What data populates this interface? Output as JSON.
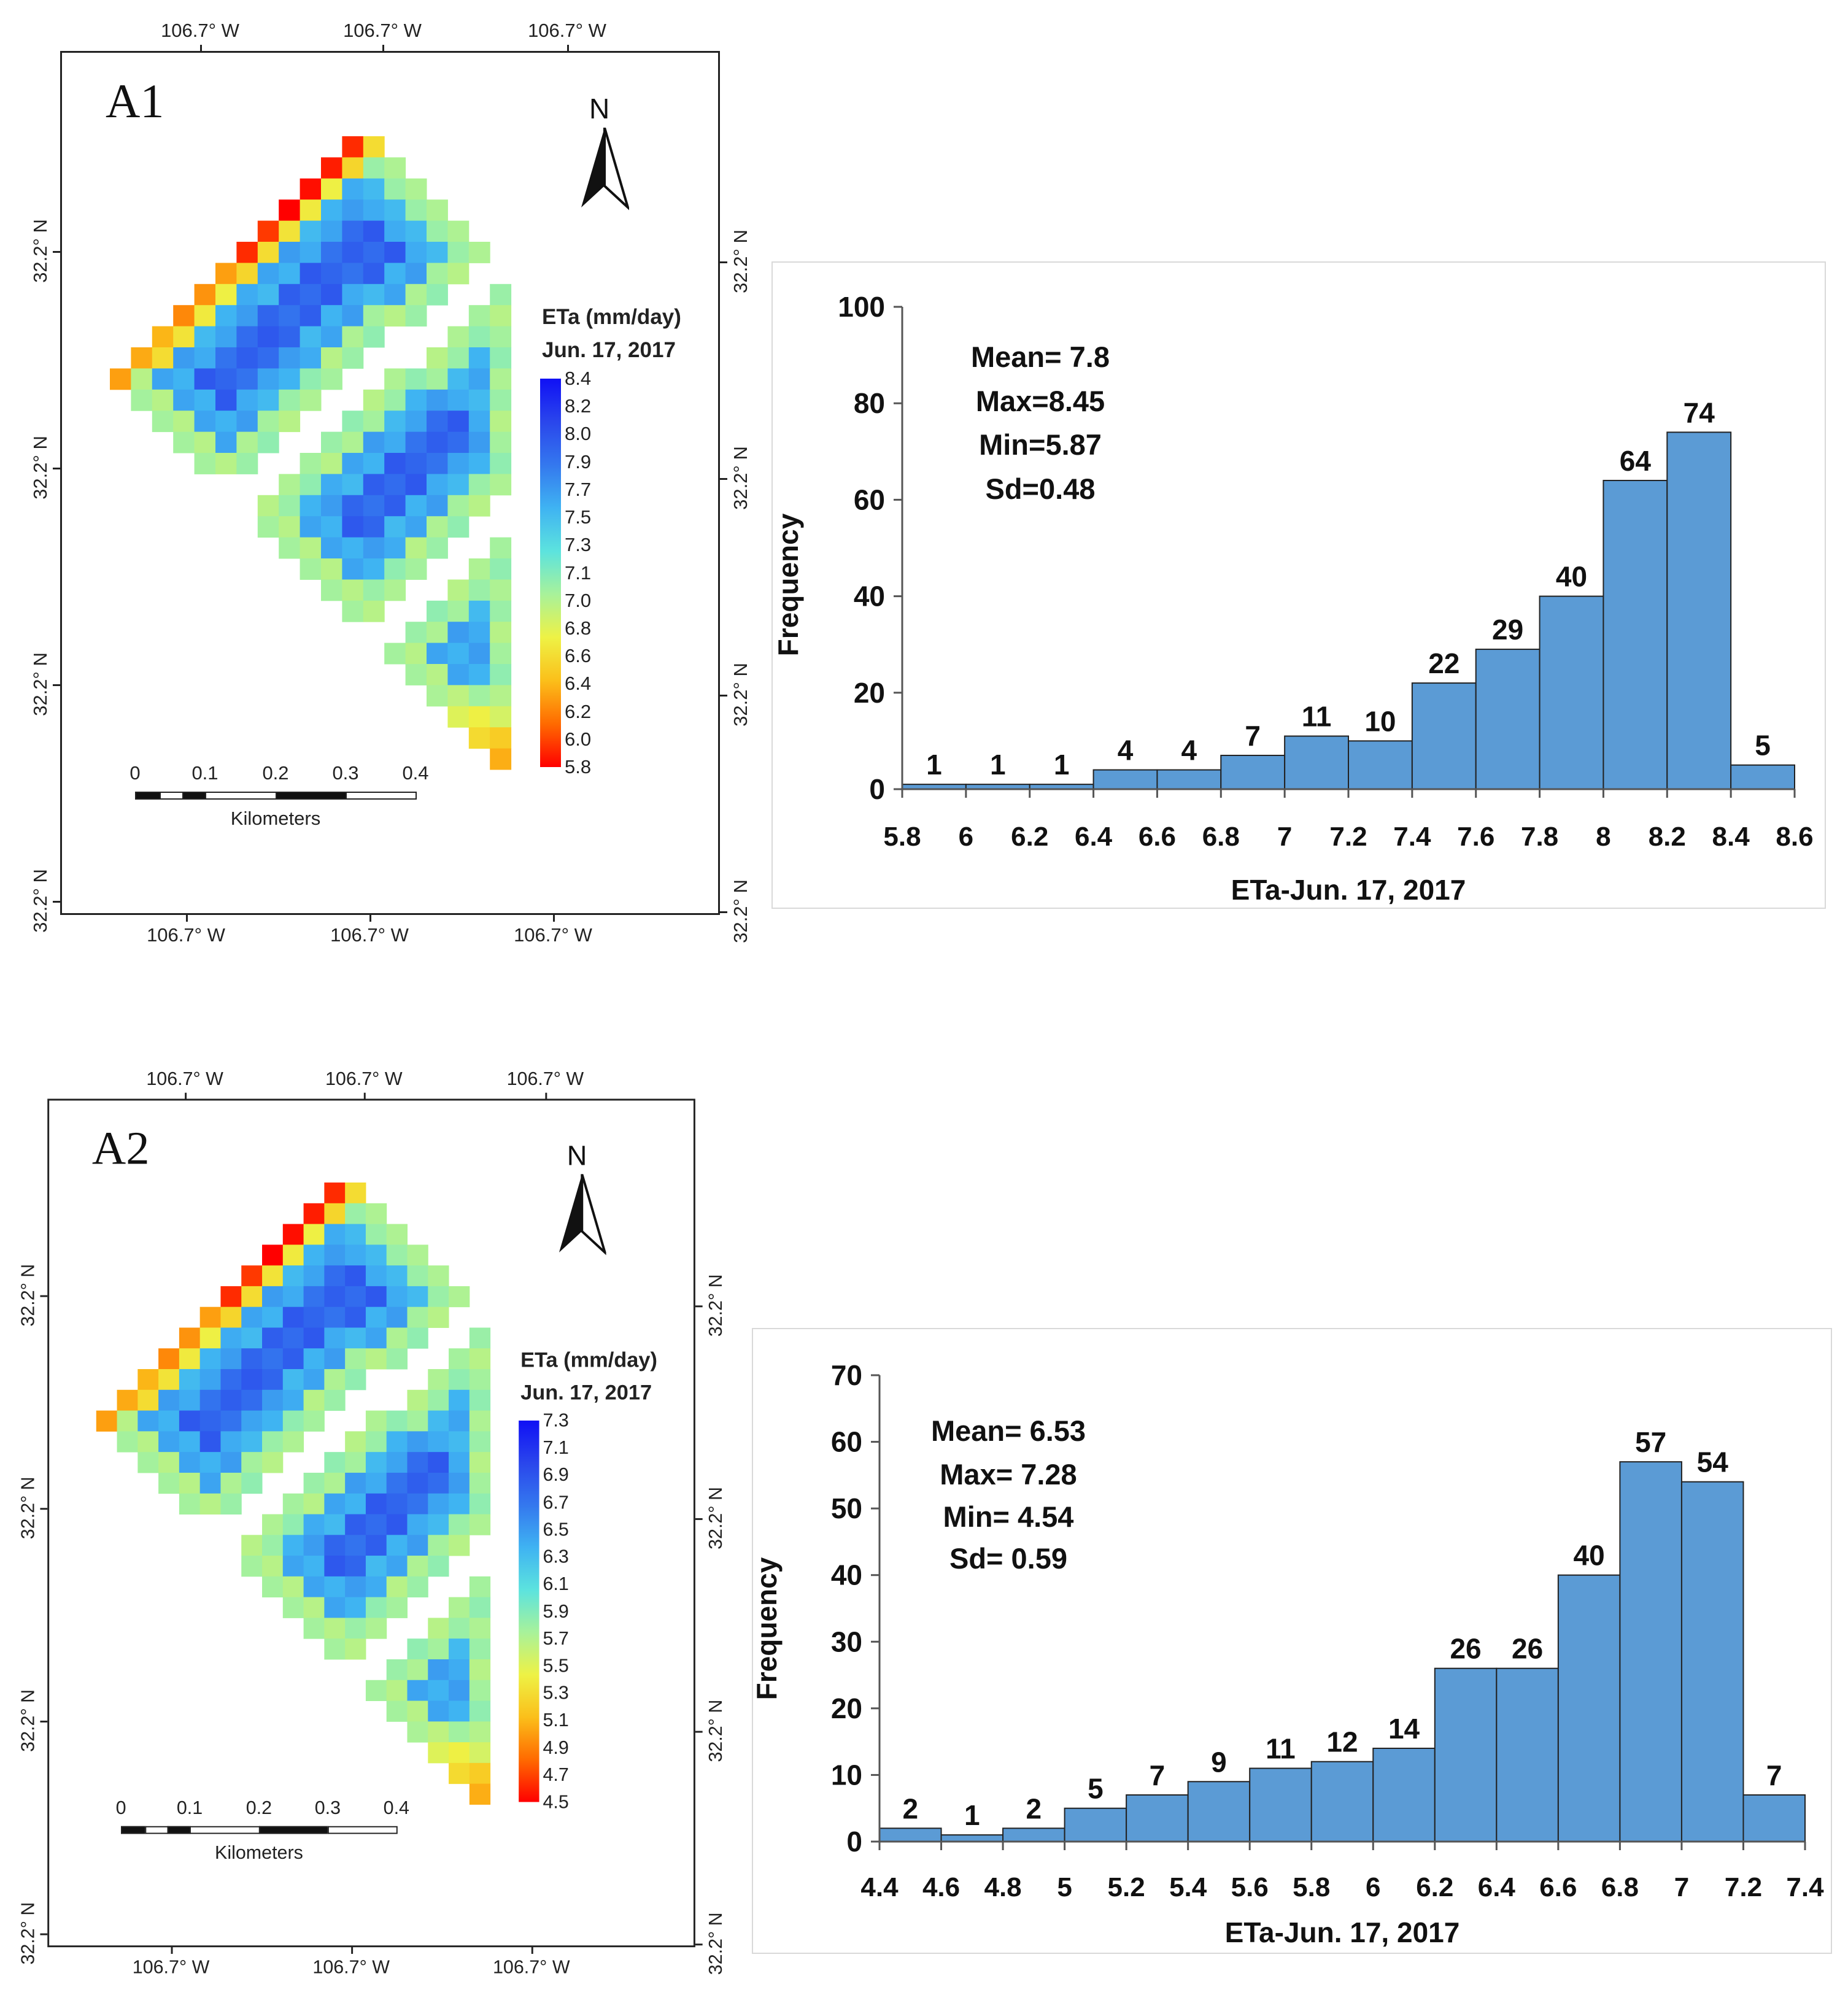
{
  "maps": [
    {
      "panel": "A1",
      "north": "N",
      "legend_title": "ETa (mm/day)",
      "legend_date": "Jun. 17, 2017",
      "legend_ticks": [
        "8.4",
        "8.2",
        "8.0",
        "7.9",
        "7.7",
        "7.5",
        "7.3",
        "7.1",
        "7.0",
        "6.8",
        "6.6",
        "6.4",
        "6.2",
        "6.0",
        "5.8"
      ],
      "lon_label": "106.7° W",
      "lat_label": "32.2° N",
      "scale_ticks": [
        "0",
        "0.1",
        "0.2",
        "0.3",
        "0.4"
      ],
      "scale_unit": "Kilometers"
    },
    {
      "panel": "A2",
      "north": "N",
      "legend_title": "ETa (mm/day)",
      "legend_date": "Jun. 17, 2017",
      "legend_ticks": [
        "7.3",
        "7.1",
        "6.9",
        "6.7",
        "6.5",
        "6.3",
        "6.1",
        "5.9",
        "5.7",
        "5.5",
        "5.3",
        "5.1",
        "4.9",
        "4.7",
        "4.5"
      ],
      "lon_label": "106.7° W",
      "lat_label": "32.2° N",
      "scale_ticks": [
        "0",
        "0.1",
        "0.2",
        "0.3",
        "0.4"
      ],
      "scale_unit": "Kilometers"
    }
  ],
  "colormap": [
    "#ff0000",
    "#ff6a00",
    "#fbbf1a",
    "#eef245",
    "#a8f29a",
    "#5ce3de",
    "#3fb3f2",
    "#3478ee",
    "#2a46ec",
    "#1010f5"
  ],
  "bar_color": "#5b9bd5",
  "chart_data": [
    {
      "type": "bar",
      "title": "",
      "xlabel": "ETa-Jun. 17, 2017",
      "ylabel": "Frequency",
      "bin_edges": [
        5.8,
        6,
        6.2,
        6.4,
        6.6,
        6.8,
        7,
        7.2,
        7.4,
        7.6,
        7.8,
        8,
        8.2,
        8.4,
        8.6
      ],
      "xtick_labels": [
        "5.8",
        "6",
        "6.2",
        "6.4",
        "6.6",
        "6.8",
        "7",
        "7.2",
        "7.4",
        "7.6",
        "7.8",
        "8",
        "8.2",
        "8.4",
        "8.6"
      ],
      "values": [
        1,
        1,
        1,
        4,
        4,
        7,
        11,
        10,
        22,
        29,
        40,
        64,
        74,
        5
      ],
      "ylim": [
        0,
        100
      ],
      "yticks": [
        "0",
        "20",
        "40",
        "60",
        "80",
        "100"
      ],
      "stats": [
        "Mean= 7.8",
        "Max=8.45",
        "Min=5.87",
        "Sd=0.48"
      ],
      "grid": false
    },
    {
      "type": "bar",
      "title": "",
      "xlabel": "ETa-Jun. 17, 2017",
      "ylabel": "Frequency",
      "bin_edges": [
        4.4,
        4.6,
        4.8,
        5,
        5.2,
        5.4,
        5.6,
        5.8,
        6,
        6.2,
        6.4,
        6.6,
        6.8,
        7,
        7.2,
        7.4
      ],
      "xtick_labels": [
        "4.4",
        "4.6",
        "4.8",
        "5",
        "5.2",
        "5.4",
        "5.6",
        "5.8",
        "6",
        "6.2",
        "6.4",
        "6.6",
        "6.8",
        "7",
        "7.2",
        "7.4"
      ],
      "values": [
        2,
        1,
        2,
        5,
        7,
        9,
        11,
        12,
        14,
        26,
        26,
        40,
        57,
        54,
        7
      ],
      "ylim": [
        0,
        70
      ],
      "yticks": [
        "0",
        "10",
        "20",
        "30",
        "40",
        "50",
        "60",
        "70"
      ],
      "stats": [
        "Mean= 6.53",
        "Max= 7.28",
        "Min= 4.54",
        "Sd= 0.59"
      ],
      "grid": false
    }
  ]
}
